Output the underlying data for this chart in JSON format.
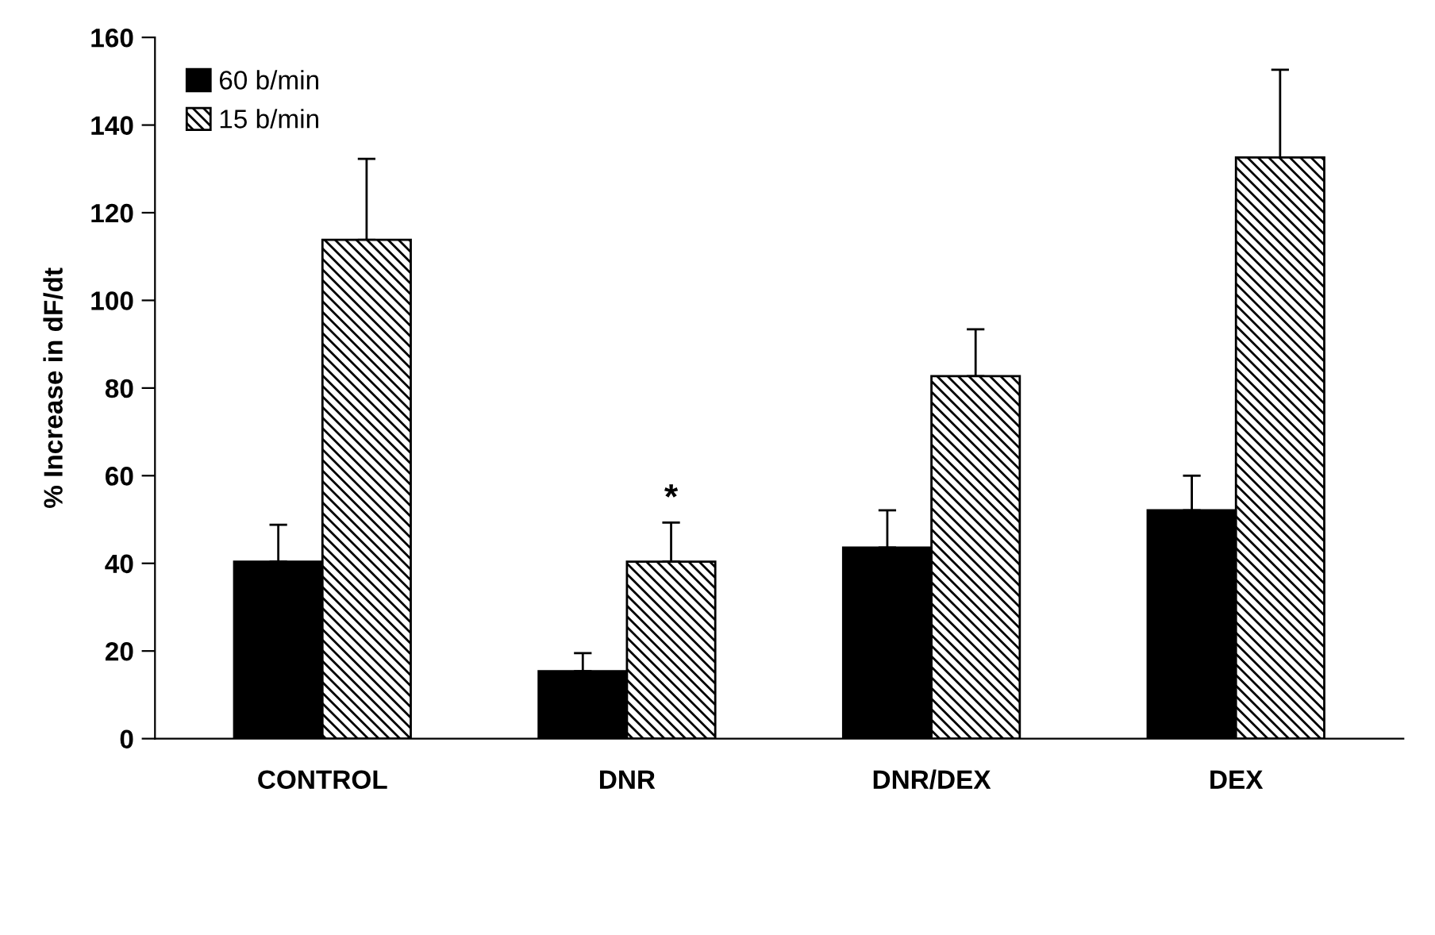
{
  "chart_data": {
    "type": "bar",
    "ylabel": "% Increase in dF/dt",
    "categories": [
      "CONTROL",
      "DNR",
      "DNR/DEX",
      "DEX"
    ],
    "series": [
      {
        "name": "60 b/min",
        "color": "#000000",
        "values": [
          40.4,
          15.4,
          43.6,
          52.1
        ],
        "errors": [
          [
            40.4,
            48.8
          ],
          [
            15.4,
            19.5
          ],
          [
            43.6,
            52.1
          ],
          [
            52.1,
            60.0
          ]
        ]
      },
      {
        "name": "15 b/min",
        "color": "#000000",
        "values": [
          113.8,
          40.4,
          82.7,
          132.6
        ],
        "errors": [
          [
            113.8,
            132.3
          ],
          [
            40.4,
            49.3
          ],
          [
            82.7,
            93.4
          ],
          [
            132.6,
            152.6
          ]
        ]
      }
    ],
    "annotations": [
      "*"
    ],
    "ylim": [
      0,
      160
    ],
    "yticks": [
      0,
      20,
      40,
      60,
      80,
      100,
      120,
      140,
      160
    ],
    "grid": false,
    "legend": "top left"
  }
}
